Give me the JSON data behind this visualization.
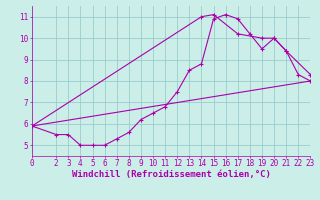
{
  "xlabel": "Windchill (Refroidissement éolien,°C)",
  "xlim": [
    0,
    23
  ],
  "ylim": [
    4.5,
    11.5
  ],
  "xticks": [
    0,
    2,
    3,
    4,
    5,
    6,
    7,
    8,
    9,
    10,
    11,
    12,
    13,
    14,
    15,
    16,
    17,
    18,
    19,
    20,
    21,
    22,
    23
  ],
  "yticks": [
    5,
    6,
    7,
    8,
    9,
    10,
    11
  ],
  "bg_color": "#cceee8",
  "grid_color": "#99cccc",
  "line_color": "#aa00aa",
  "series1_x": [
    0,
    2,
    3,
    4,
    5,
    6,
    7,
    8,
    9,
    10,
    11,
    12,
    13,
    14,
    15,
    16,
    17,
    18,
    19,
    20,
    21,
    22,
    23
  ],
  "series1_y": [
    5.9,
    5.5,
    5.5,
    5.0,
    5.0,
    5.0,
    5.3,
    5.6,
    6.2,
    6.5,
    6.8,
    7.5,
    8.5,
    8.8,
    10.9,
    11.1,
    10.9,
    10.2,
    9.5,
    10.0,
    9.4,
    8.3,
    8.0
  ],
  "series2_x": [
    0,
    23
  ],
  "series2_y": [
    5.9,
    8.0
  ],
  "series3_x": [
    0,
    14,
    15,
    17,
    19,
    20,
    21,
    23
  ],
  "series3_y": [
    5.9,
    11.0,
    11.1,
    10.2,
    10.0,
    10.0,
    9.4,
    8.3
  ],
  "font_color": "#aa00aa",
  "font_size_label": 6.5,
  "font_size_tick": 5.5
}
